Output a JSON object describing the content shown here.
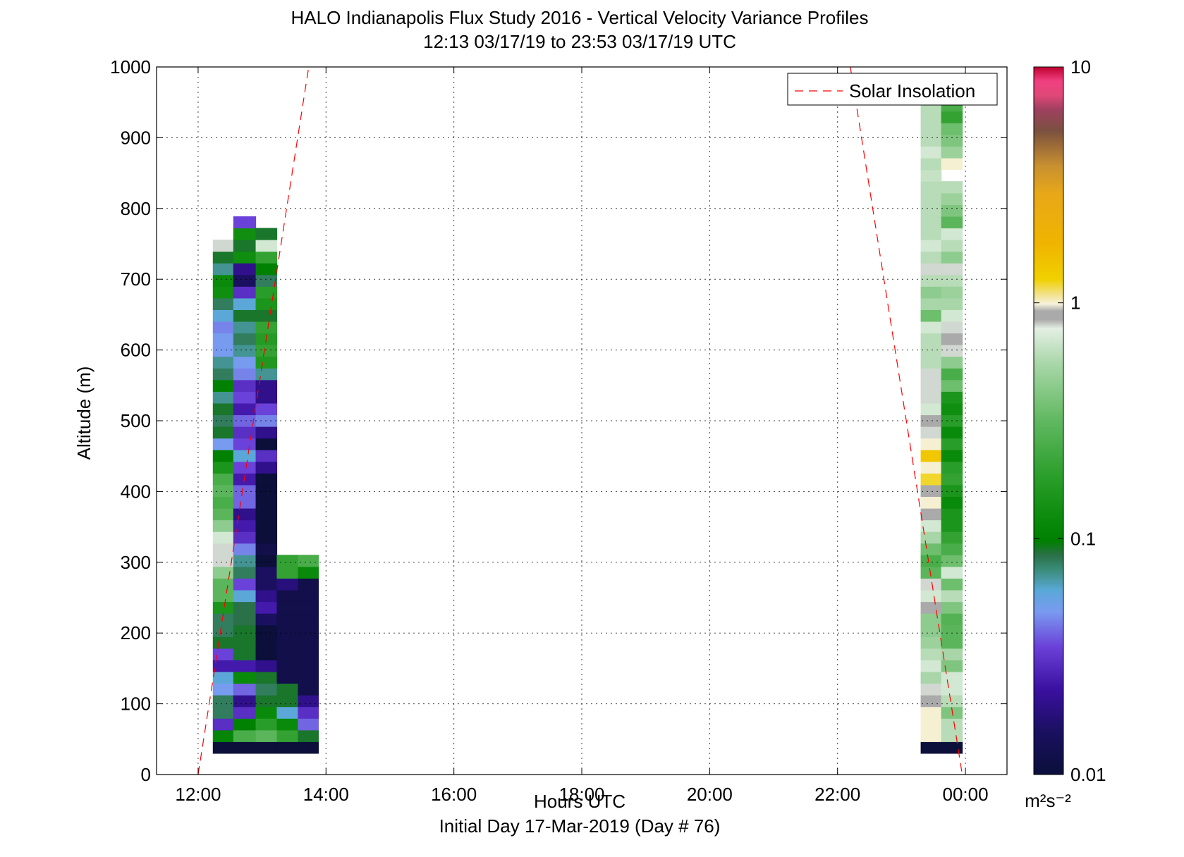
{
  "chart_data": {
    "type": "heatmap",
    "title": "HALO Indianapolis Flux Study 2016 - Vertical Velocity Variance Profiles",
    "subtitle": "12:13 03/17/19 to 23:53 03/17/19  UTC",
    "xlabel": "Hours UTC",
    "xlabel2": "Initial Day 17-Mar-2019 (Day # 76)",
    "ylabel": "Altitude (m)",
    "xlim": [
      11.35,
      24.65
    ],
    "ylim": [
      0,
      1000
    ],
    "x_ticks": [
      {
        "v": 12,
        "label": "12:00"
      },
      {
        "v": 14,
        "label": "14:00"
      },
      {
        "v": 16,
        "label": "16:00"
      },
      {
        "v": 18,
        "label": "18:00"
      },
      {
        "v": 20,
        "label": "20:00"
      },
      {
        "v": 22,
        "label": "22:00"
      },
      {
        "v": 24,
        "label": "00:00"
      }
    ],
    "y_ticks": [
      0,
      100,
      200,
      300,
      400,
      500,
      600,
      700,
      800,
      900,
      1000
    ],
    "grid": true,
    "legend": {
      "position": "top-right",
      "entries": [
        "Solar Insolation"
      ]
    },
    "solar_insolation": [
      {
        "points": [
          [
            12.0,
            0
          ],
          [
            13.73,
            1000
          ]
        ]
      },
      {
        "points": [
          [
            22.2,
            1000
          ],
          [
            23.95,
            0
          ]
        ]
      }
    ],
    "colorbar": {
      "scale": "log",
      "range": [
        0.01,
        10
      ],
      "ticks": [
        {
          "v": 0.01,
          "label": "0.01"
        },
        {
          "v": 0.1,
          "label": "0.1"
        },
        {
          "v": 1,
          "label": "1"
        },
        {
          "v": 10,
          "label": "10"
        }
      ],
      "unit": "m²s⁻²",
      "stops": [
        [
          0.0,
          "#0b0f3a"
        ],
        [
          0.06,
          "#1a1060"
        ],
        [
          0.12,
          "#3a10a0"
        ],
        [
          0.18,
          "#6a40d8"
        ],
        [
          0.23,
          "#7a9af0"
        ],
        [
          0.26,
          "#5aa8d8"
        ],
        [
          0.29,
          "#3a8c78"
        ],
        [
          0.31,
          "#2a7048"
        ],
        [
          0.33,
          "#008000"
        ],
        [
          0.36,
          "#0a8a0a"
        ],
        [
          0.42,
          "#2a9e2a"
        ],
        [
          0.5,
          "#60b860"
        ],
        [
          0.58,
          "#a8d6a8"
        ],
        [
          0.63,
          "#e4efe4"
        ],
        [
          0.643,
          "#aaaaaa"
        ],
        [
          0.655,
          "#aaaaaa"
        ],
        [
          0.665,
          "#f6f2dc"
        ],
        [
          0.68,
          "#f2e080"
        ],
        [
          0.7,
          "#f0d000"
        ],
        [
          0.75,
          "#f0b400"
        ],
        [
          0.82,
          "#e8a818"
        ],
        [
          0.86,
          "#c89030"
        ],
        [
          0.89,
          "#9a6a38"
        ],
        [
          0.91,
          "#7a5040"
        ],
        [
          0.94,
          "#a04060"
        ],
        [
          0.96,
          "#e04878"
        ],
        [
          0.98,
          "#f04080"
        ],
        [
          1.0,
          "#c00030"
        ]
      ]
    },
    "columns": [
      {
        "x0": 12.23,
        "x1": 12.55,
        "y_start": 30,
        "dy": 16.5,
        "values": [
          0.01,
          0.11,
          0.03,
          0.08,
          0.08,
          0.05,
          0.06,
          0.025,
          0.035,
          0.09,
          0.08,
          0.08,
          0.15,
          0.3,
          0.3,
          0.45,
          0.8,
          0.8,
          0.7,
          0.45,
          0.3,
          0.25,
          0.3,
          0.25,
          0.15,
          0.1,
          0.05,
          0.09,
          0.08,
          0.09,
          0.07,
          0.1,
          0.08,
          0.07,
          0.05,
          0.05,
          0.045,
          0.06,
          0.08,
          0.13,
          0.12,
          0.07,
          0.09,
          0.8
        ]
      },
      {
        "x0": 12.55,
        "x1": 12.9,
        "y_start": 30,
        "dy": 16.5,
        "values": [
          0.01,
          0.25,
          0.1,
          0.03,
          0.02,
          0.04,
          0.12,
          0.025,
          0.09,
          0.09,
          0.09,
          0.085,
          0.085,
          0.06,
          0.035,
          0.08,
          0.07,
          0.045,
          0.03,
          0.025,
          0.02,
          0.04,
          0.04,
          0.025,
          0.035,
          0.06,
          0.035,
          0.03,
          0.04,
          0.025,
          0.035,
          0.03,
          0.045,
          0.05,
          0.07,
          0.08,
          0.07,
          0.09,
          0.06,
          0.03,
          0.015,
          0.02,
          0.13,
          0.09,
          0.13,
          0.035
        ]
      },
      {
        "x0": 12.9,
        "x1": 13.23,
        "y_start": 30,
        "dy": 16.5,
        "values": [
          0.01,
          0.3,
          0.18,
          0.12,
          0.09,
          0.08,
          0.09,
          0.02,
          0.01,
          0.01,
          0.01,
          0.015,
          0.025,
          0.02,
          0.015,
          0.015,
          0.01,
          0.012,
          0.01,
          0.01,
          0.01,
          0.01,
          0.01,
          0.01,
          0.02,
          0.03,
          0.01,
          0.02,
          0.045,
          0.035,
          0.02,
          0.02,
          0.07,
          0.16,
          0.2,
          0.17,
          0.2,
          0.09,
          0.15,
          0.18,
          0.08,
          0.1,
          0.2,
          0.7,
          0.09
        ]
      },
      {
        "x0": 13.23,
        "x1": 13.56,
        "y_start": 30,
        "dy": 16.5,
        "values": [
          0.01,
          0.2,
          0.12,
          0.06,
          0.09,
          0.09,
          0.012,
          0.012,
          0.012,
          0.012,
          0.012,
          0.012,
          0.012,
          0.012,
          0.018,
          0.2,
          0.2
        ]
      },
      {
        "x0": 13.56,
        "x1": 13.88,
        "y_start": 30,
        "dy": 16.5,
        "values": [
          0.01,
          0.09,
          0.04,
          0.03,
          0.02,
          0.012,
          0.012,
          0.012,
          0.012,
          0.012,
          0.012,
          0.012,
          0.012,
          0.012,
          0.012,
          0.12,
          0.25
        ]
      },
      {
        "x0": 23.3,
        "x1": 23.62,
        "y_start": 30,
        "dy": 16.5,
        "values": [
          0.01,
          1.0,
          1.0,
          1.0,
          0.85,
          0.8,
          0.55,
          0.7,
          0.6,
          0.5,
          0.45,
          0.45,
          0.85,
          0.7,
          0.8,
          0.3,
          0.25,
          0.35,
          0.55,
          0.7,
          0.9,
          1.0,
          0.85,
          1.2,
          1.0,
          1.4,
          1.0,
          0.8,
          0.9,
          0.7,
          0.8,
          0.8,
          0.8,
          0.6,
          0.6,
          0.6,
          0.7,
          0.35,
          0.55,
          0.45,
          0.6,
          0.8,
          0.6,
          0.7,
          0.6,
          0.6,
          0.6,
          0.6,
          0.6,
          0.65,
          0.6,
          0.7,
          0.6,
          0.6,
          0.6,
          0.6
        ]
      },
      {
        "x0": 23.62,
        "x1": 23.95,
        "y_start": 30,
        "dy": 16.5,
        "values": [
          0.01,
          0.6,
          0.6,
          0.4,
          0.6,
          0.7,
          0.7,
          0.4,
          0.55,
          0.3,
          0.3,
          0.28,
          0.4,
          0.6,
          0.35,
          0.7,
          0.35,
          0.25,
          0.2,
          0.15,
          0.15,
          0.12,
          0.15,
          0.2,
          0.18,
          0.12,
          0.18,
          0.12,
          0.18,
          0.13,
          0.15,
          0.35,
          0.25,
          0.45,
          0.8,
          0.9,
          0.8,
          0.7,
          0.55,
          0.5,
          0.6,
          0.8,
          0.45,
          0.6,
          0.7,
          0.3,
          0.4,
          0.5,
          0.6,
          null,
          1.0,
          0.5,
          0.4,
          0.35,
          0.2,
          0.25,
          0.6
        ]
      }
    ]
  }
}
